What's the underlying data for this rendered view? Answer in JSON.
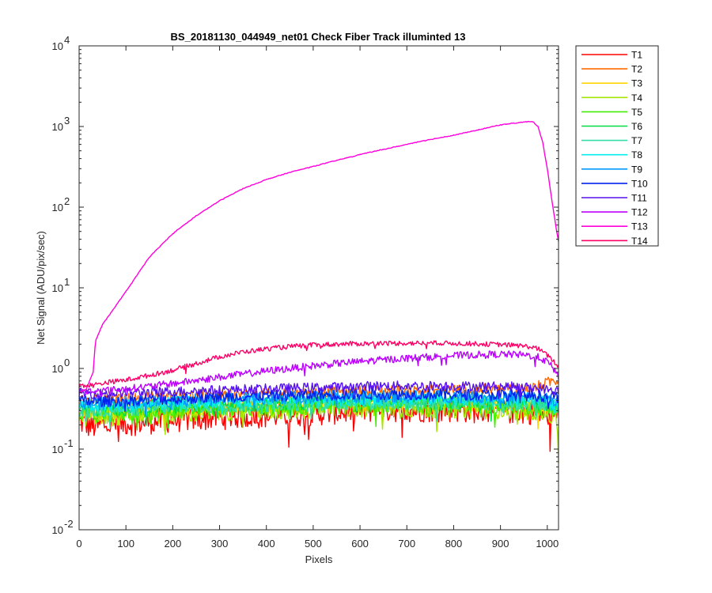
{
  "chart_data": {
    "type": "line",
    "title": "BS_20181130_044949_net01   Check Fiber     Track illuminted 13",
    "xlabel": "Pixels",
    "ylabel": "Net Signal (ADU/pix/sec)",
    "xlim": [
      0,
      1024
    ],
    "ylim": [
      0.01,
      10000
    ],
    "yscale": "log",
    "xticks": [
      0,
      100,
      200,
      300,
      400,
      500,
      600,
      700,
      800,
      900,
      1000
    ],
    "yticks": [
      {
        "base": "10",
        "exp": "-2",
        "value": 0.01
      },
      {
        "base": "10",
        "exp": "-1",
        "value": 0.1
      },
      {
        "base": "10",
        "exp": "0",
        "value": 1
      },
      {
        "base": "10",
        "exp": "1",
        "value": 10
      },
      {
        "base": "10",
        "exp": "2",
        "value": 100
      },
      {
        "base": "10",
        "exp": "3",
        "value": 1000
      },
      {
        "base": "10",
        "exp": "4",
        "value": 10000
      }
    ],
    "grid": false,
    "legend_position": "outside-top-right",
    "x": [
      0,
      15,
      30,
      35,
      50,
      100,
      150,
      200,
      250,
      300,
      350,
      400,
      450,
      500,
      550,
      600,
      650,
      700,
      750,
      800,
      850,
      900,
      940,
      960,
      970,
      980,
      990,
      1000,
      1010,
      1020,
      1024
    ],
    "series": [
      {
        "name": "T1",
        "color": "#ff0000",
        "values": [
          0.22,
          0.2,
          0.19,
          0.19,
          0.2,
          0.21,
          0.22,
          0.23,
          0.24,
          0.25,
          0.26,
          0.26,
          0.27,
          0.28,
          0.29,
          0.3,
          0.31,
          0.31,
          0.31,
          0.31,
          0.3,
          0.3,
          0.29,
          0.29,
          0.29,
          0.28,
          0.28,
          0.27,
          0.27,
          0.26,
          0.26
        ]
      },
      {
        "name": "T2",
        "color": "#ff6a00",
        "values": [
          0.4,
          0.4,
          0.4,
          0.4,
          0.41,
          0.42,
          0.44,
          0.45,
          0.46,
          0.47,
          0.48,
          0.48,
          0.49,
          0.5,
          0.51,
          0.52,
          0.53,
          0.53,
          0.54,
          0.54,
          0.55,
          0.55,
          0.56,
          0.57,
          0.58,
          0.6,
          0.63,
          0.66,
          0.7,
          0.72,
          0.72
        ]
      },
      {
        "name": "T3",
        "color": "#ffd400",
        "values": [
          0.3,
          0.29,
          0.29,
          0.29,
          0.29,
          0.3,
          0.31,
          0.31,
          0.32,
          0.33,
          0.33,
          0.34,
          0.34,
          0.35,
          0.35,
          0.36,
          0.36,
          0.36,
          0.36,
          0.36,
          0.36,
          0.35,
          0.35,
          0.35,
          0.35,
          0.34,
          0.34,
          0.34,
          0.33,
          0.33,
          0.33
        ]
      },
      {
        "name": "T4",
        "color": "#a6e600",
        "values": [
          0.26,
          0.25,
          0.25,
          0.25,
          0.25,
          0.26,
          0.27,
          0.27,
          0.28,
          0.29,
          0.3,
          0.3,
          0.31,
          0.31,
          0.32,
          0.32,
          0.32,
          0.32,
          0.32,
          0.32,
          0.31,
          0.31,
          0.3,
          0.3,
          0.3,
          0.29,
          0.28,
          0.27,
          0.26,
          0.25,
          0.08
        ]
      },
      {
        "name": "T5",
        "color": "#44ee00",
        "values": [
          0.28,
          0.27,
          0.27,
          0.27,
          0.27,
          0.28,
          0.29,
          0.3,
          0.31,
          0.32,
          0.32,
          0.33,
          0.33,
          0.34,
          0.34,
          0.35,
          0.35,
          0.35,
          0.35,
          0.35,
          0.35,
          0.34,
          0.34,
          0.34,
          0.33,
          0.33,
          0.33,
          0.32,
          0.32,
          0.31,
          0.3
        ]
      },
      {
        "name": "T6",
        "color": "#00dd44",
        "values": [
          0.32,
          0.31,
          0.31,
          0.31,
          0.31,
          0.32,
          0.33,
          0.34,
          0.35,
          0.36,
          0.36,
          0.37,
          0.37,
          0.38,
          0.38,
          0.39,
          0.39,
          0.39,
          0.39,
          0.39,
          0.38,
          0.38,
          0.38,
          0.37,
          0.37,
          0.37,
          0.36,
          0.36,
          0.35,
          0.35,
          0.35
        ]
      },
      {
        "name": "T7",
        "color": "#33ddaa",
        "values": [
          0.3,
          0.3,
          0.3,
          0.3,
          0.3,
          0.31,
          0.32,
          0.33,
          0.34,
          0.34,
          0.35,
          0.35,
          0.36,
          0.36,
          0.37,
          0.37,
          0.37,
          0.37,
          0.37,
          0.37,
          0.37,
          0.36,
          0.36,
          0.36,
          0.35,
          0.35,
          0.35,
          0.34,
          0.34,
          0.33,
          0.33
        ]
      },
      {
        "name": "T8",
        "color": "#00eeee",
        "values": [
          0.35,
          0.34,
          0.34,
          0.34,
          0.34,
          0.35,
          0.36,
          0.37,
          0.38,
          0.39,
          0.39,
          0.4,
          0.4,
          0.41,
          0.41,
          0.42,
          0.42,
          0.42,
          0.42,
          0.42,
          0.41,
          0.41,
          0.41,
          0.4,
          0.4,
          0.4,
          0.39,
          0.39,
          0.38,
          0.38,
          0.38
        ]
      },
      {
        "name": "T9",
        "color": "#0099ff",
        "values": [
          0.38,
          0.37,
          0.37,
          0.37,
          0.37,
          0.38,
          0.39,
          0.4,
          0.41,
          0.42,
          0.43,
          0.43,
          0.44,
          0.44,
          0.45,
          0.45,
          0.45,
          0.45,
          0.45,
          0.45,
          0.45,
          0.44,
          0.44,
          0.44,
          0.43,
          0.43,
          0.42,
          0.42,
          0.41,
          0.41,
          0.41
        ]
      },
      {
        "name": "T10",
        "color": "#0022ee",
        "values": [
          0.4,
          0.39,
          0.39,
          0.39,
          0.39,
          0.4,
          0.41,
          0.42,
          0.43,
          0.44,
          0.45,
          0.46,
          0.46,
          0.47,
          0.47,
          0.48,
          0.48,
          0.48,
          0.48,
          0.48,
          0.47,
          0.47,
          0.47,
          0.46,
          0.46,
          0.46,
          0.45,
          0.45,
          0.44,
          0.44,
          0.44
        ]
      },
      {
        "name": "T11",
        "color": "#5511ee",
        "values": [
          0.5,
          0.49,
          0.49,
          0.49,
          0.49,
          0.5,
          0.51,
          0.52,
          0.53,
          0.54,
          0.55,
          0.56,
          0.57,
          0.58,
          0.59,
          0.6,
          0.61,
          0.61,
          0.61,
          0.61,
          0.6,
          0.6,
          0.59,
          0.58,
          0.58,
          0.57,
          0.56,
          0.55,
          0.54,
          0.52,
          0.52
        ]
      },
      {
        "name": "T12",
        "color": "#bb00ff",
        "values": [
          0.53,
          0.52,
          0.52,
          0.52,
          0.53,
          0.56,
          0.6,
          0.65,
          0.71,
          0.78,
          0.85,
          0.93,
          1.0,
          1.08,
          1.15,
          1.22,
          1.28,
          1.34,
          1.39,
          1.44,
          1.48,
          1.5,
          1.48,
          1.45,
          1.42,
          1.38,
          1.3,
          1.2,
          1.05,
          0.85,
          0.8
        ]
      },
      {
        "name": "T13",
        "color": "#ff00dd",
        "values": [
          0.5,
          0.55,
          0.9,
          2.2,
          3.5,
          9,
          24,
          47,
          78,
          120,
          170,
          220,
          270,
          320,
          380,
          450,
          520,
          600,
          690,
          780,
          900,
          1050,
          1120,
          1150,
          1140,
          1000,
          650,
          300,
          120,
          50,
          38
        ]
      },
      {
        "name": "T14",
        "color": "#ff0066",
        "values": [
          0.62,
          0.62,
          0.62,
          0.63,
          0.66,
          0.72,
          0.82,
          0.95,
          1.15,
          1.4,
          1.6,
          1.75,
          1.87,
          1.95,
          2.0,
          2.03,
          2.05,
          2.06,
          2.06,
          2.05,
          2.02,
          1.98,
          1.92,
          1.87,
          1.82,
          1.76,
          1.62,
          1.45,
          1.3,
          1.1,
          1.05
        ]
      }
    ]
  }
}
